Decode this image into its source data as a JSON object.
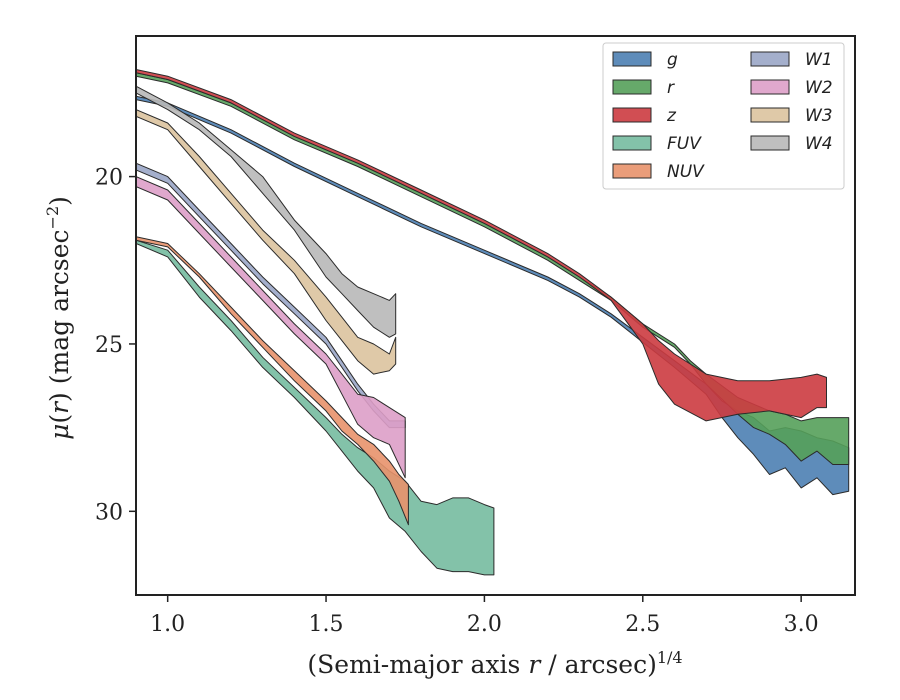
{
  "chart_data": {
    "type": "area",
    "xlabel": "(Semi-major axis r / arcsec)",
    "xlabel_parts": {
      "prefix": "(Semi-major axis ",
      "var": "r",
      "mid": " / arcsec)",
      "sup": "1/4"
    },
    "ylabel_parts": {
      "mu": "μ",
      "open": "(",
      "var": "r",
      "close": ") (mag arcsec",
      "sup": "−2",
      "end": ")"
    },
    "xlim": [
      0.9,
      3.17
    ],
    "ylim": [
      32.5,
      15.8
    ],
    "y_inverted": true,
    "xticks": [
      1.0,
      1.5,
      2.0,
      2.5,
      3.0
    ],
    "xtick_labels": [
      "1.0",
      "1.5",
      "2.0",
      "2.5",
      "3.0"
    ],
    "yticks": [
      20,
      25,
      30
    ],
    "ytick_labels": [
      "20",
      "25",
      "30"
    ],
    "grid": false,
    "legend_position": "top-right",
    "legend_columns": 2,
    "series": [
      {
        "name": "g",
        "color": "#4c7fb3",
        "x": [
          0.9,
          1.0,
          1.2,
          1.4,
          1.6,
          1.8,
          2.0,
          2.2,
          2.3,
          2.4,
          2.5,
          2.6,
          2.7,
          2.75,
          2.8,
          2.85,
          2.9,
          2.95,
          3.0,
          3.05,
          3.1,
          3.15
        ],
        "y_upper": [
          17.6,
          17.8,
          18.6,
          19.6,
          20.5,
          21.4,
          22.2,
          23.0,
          23.5,
          24.1,
          24.8,
          25.5,
          26.2,
          26.7,
          27.0,
          27.2,
          27.6,
          27.5,
          27.6,
          27.8,
          27.9,
          28.1
        ],
        "y_lower": [
          17.7,
          17.9,
          18.7,
          19.7,
          20.6,
          21.5,
          22.3,
          23.1,
          23.6,
          24.2,
          24.95,
          25.7,
          26.5,
          27.2,
          27.8,
          28.3,
          28.9,
          28.7,
          29.3,
          29.0,
          29.5,
          29.4
        ]
      },
      {
        "name": "r",
        "color": "#55a05a",
        "x": [
          0.9,
          1.0,
          1.2,
          1.4,
          1.6,
          1.8,
          2.0,
          2.2,
          2.3,
          2.4,
          2.5,
          2.6,
          2.65,
          2.7,
          2.8,
          2.85,
          2.9,
          2.95,
          3.0,
          3.05,
          3.1,
          3.15
        ],
        "y_upper": [
          16.9,
          17.1,
          17.8,
          18.8,
          19.6,
          20.5,
          21.4,
          22.4,
          23.0,
          23.6,
          24.4,
          25.0,
          25.5,
          25.9,
          26.6,
          26.8,
          27.0,
          27.1,
          27.3,
          27.2,
          27.2,
          27.2
        ],
        "y_lower": [
          17.0,
          17.2,
          17.9,
          18.9,
          19.7,
          20.6,
          21.5,
          22.5,
          23.1,
          23.7,
          24.5,
          25.1,
          25.6,
          26.2,
          27.1,
          27.5,
          27.7,
          28.0,
          28.5,
          28.2,
          28.6,
          28.6
        ]
      },
      {
        "name": "z",
        "color": "#cc3b40",
        "x": [
          0.9,
          1.0,
          1.2,
          1.4,
          1.6,
          1.8,
          2.0,
          2.2,
          2.3,
          2.4,
          2.5,
          2.55,
          2.6,
          2.7,
          2.8,
          2.9,
          3.0,
          3.05,
          3.08
        ],
        "y_upper": [
          16.8,
          17.0,
          17.7,
          18.7,
          19.5,
          20.4,
          21.3,
          22.3,
          22.9,
          23.6,
          24.4,
          24.9,
          25.3,
          25.9,
          26.1,
          26.1,
          26.0,
          25.9,
          26.0
        ],
        "y_lower": [
          16.9,
          17.1,
          17.8,
          18.8,
          19.6,
          20.5,
          21.4,
          22.4,
          23.0,
          23.7,
          25.0,
          26.2,
          26.8,
          27.3,
          27.1,
          27.0,
          27.2,
          26.9,
          26.9
        ]
      },
      {
        "name": "FUV",
        "color": "#75bba0",
        "x": [
          0.9,
          1.0,
          1.1,
          1.2,
          1.3,
          1.4,
          1.5,
          1.55,
          1.6,
          1.65,
          1.7,
          1.75,
          1.8,
          1.85,
          1.9,
          1.95,
          2.0,
          2.03
        ],
        "y_upper": [
          21.9,
          22.2,
          23.3,
          24.3,
          25.4,
          26.3,
          27.2,
          27.7,
          28.1,
          28.4,
          28.8,
          29.1,
          29.7,
          29.8,
          29.6,
          29.6,
          29.8,
          29.9
        ],
        "y_lower": [
          22.0,
          22.4,
          23.6,
          24.6,
          25.7,
          26.6,
          27.6,
          28.2,
          28.8,
          29.3,
          30.2,
          30.6,
          31.2,
          31.7,
          31.8,
          31.8,
          31.9,
          31.9
        ]
      },
      {
        "name": "NUV",
        "color": "#e8926c",
        "x": [
          0.9,
          1.0,
          1.1,
          1.2,
          1.3,
          1.4,
          1.5,
          1.55,
          1.6,
          1.65,
          1.7,
          1.73,
          1.76
        ],
        "y_upper": [
          21.8,
          22.0,
          22.9,
          23.9,
          24.9,
          25.8,
          26.7,
          27.2,
          27.7,
          28.0,
          28.5,
          28.9,
          29.2
        ],
        "y_lower": [
          21.9,
          22.1,
          23.0,
          24.1,
          25.1,
          26.1,
          27.0,
          27.6,
          28.0,
          28.5,
          29.1,
          29.7,
          30.4
        ]
      },
      {
        "name": "W1",
        "color": "#9aa6c7",
        "x": [
          0.9,
          1.0,
          1.1,
          1.2,
          1.3,
          1.4,
          1.5,
          1.55,
          1.6,
          1.65,
          1.7,
          1.75
        ],
        "y_upper": [
          19.6,
          20.0,
          21.0,
          22.0,
          23.0,
          23.9,
          24.8,
          25.5,
          26.2,
          26.8,
          27.3,
          27.3
        ],
        "y_lower": [
          19.8,
          20.2,
          21.2,
          22.2,
          23.2,
          24.1,
          25.0,
          25.7,
          26.4,
          27.0,
          27.5,
          27.5
        ]
      },
      {
        "name": "W2",
        "color": "#dd9fc8",
        "x": [
          0.9,
          1.0,
          1.1,
          1.2,
          1.3,
          1.4,
          1.5,
          1.55,
          1.6,
          1.65,
          1.7,
          1.75
        ],
        "y_upper": [
          20.0,
          20.4,
          21.4,
          22.4,
          23.4,
          24.4,
          25.3,
          25.9,
          26.5,
          26.6,
          26.9,
          27.2
        ],
        "y_lower": [
          20.3,
          20.7,
          21.7,
          22.7,
          23.7,
          24.7,
          25.6,
          26.5,
          27.4,
          27.8,
          28.0,
          29.0
        ]
      },
      {
        "name": "W3",
        "color": "#dcc39f",
        "x": [
          0.9,
          1.0,
          1.1,
          1.2,
          1.3,
          1.4,
          1.5,
          1.55,
          1.6,
          1.65,
          1.7,
          1.72
        ],
        "y_upper": [
          18.0,
          18.4,
          19.4,
          20.5,
          21.6,
          22.5,
          23.6,
          24.2,
          24.8,
          25.0,
          25.3,
          24.8
        ],
        "y_lower": [
          18.2,
          18.6,
          19.7,
          20.8,
          21.9,
          22.9,
          24.3,
          24.9,
          25.5,
          25.9,
          25.8,
          25.6
        ]
      },
      {
        "name": "W4",
        "color": "#b8b8b8",
        "x": [
          0.9,
          1.0,
          1.1,
          1.2,
          1.3,
          1.4,
          1.5,
          1.55,
          1.6,
          1.65,
          1.7,
          1.72
        ],
        "y_upper": [
          17.3,
          17.8,
          18.4,
          19.2,
          20.0,
          21.3,
          22.3,
          22.9,
          23.3,
          23.5,
          23.7,
          23.5
        ],
        "y_lower": [
          17.5,
          18.0,
          18.6,
          19.4,
          20.5,
          21.6,
          23.0,
          23.5,
          24.0,
          24.5,
          24.8,
          24.7
        ]
      }
    ]
  }
}
